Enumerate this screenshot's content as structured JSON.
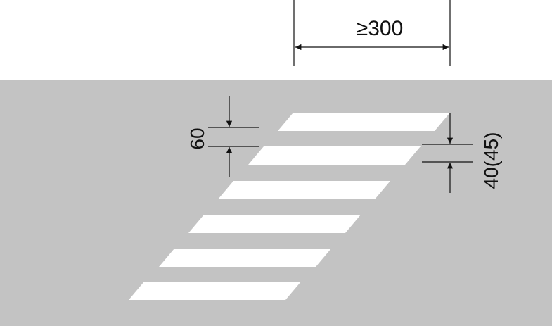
{
  "dimensions": {
    "width_label": "≥300",
    "stripe_height_label": "40(45)",
    "gap_label": "60"
  },
  "stripes": {
    "count": 6
  },
  "colors": {
    "background": "#ffffff",
    "road": "#c3c3c3",
    "stripe": "#ffffff",
    "dimension_line": "#111111"
  }
}
